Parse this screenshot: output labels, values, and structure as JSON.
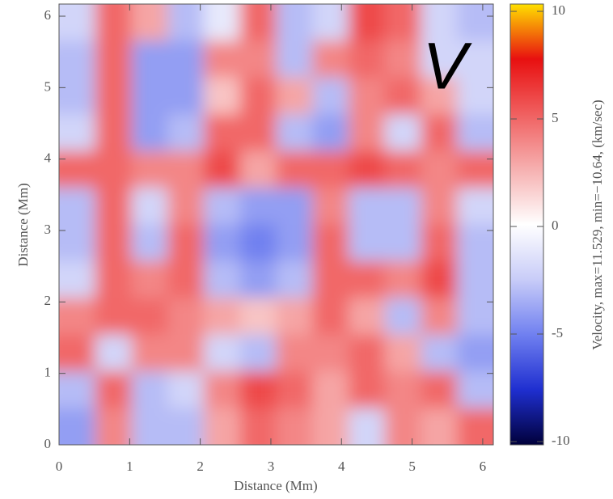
{
  "chart_data": {
    "type": "heatmap",
    "annotation": "V",
    "xlabel": "Distance (Mm)",
    "ylabel": "Distance (Mm)",
    "colorbar_label": "Velocity, max=11.529, min=−10.64, (km/sec)",
    "xlim": [
      0,
      6.15
    ],
    "ylim": [
      0,
      6.17
    ],
    "xticks": [
      0,
      1,
      2,
      3,
      4,
      5,
      6
    ],
    "yticks": [
      0,
      1,
      2,
      3,
      4,
      5,
      6
    ],
    "clim": [
      -10.15,
      10.34
    ],
    "cticks": [
      -10,
      -5,
      0,
      5,
      10
    ],
    "colormap": [
      "#00003a",
      "#1f2fd0",
      "#7080f0",
      "#c8ccf8",
      "#ffffff",
      "#f6b0b0",
      "#f06060",
      "#e81010",
      "#ffe000"
    ],
    "z": [
      [
        -2,
        5,
        3,
        -3,
        -1,
        5,
        -3,
        -2,
        6,
        5,
        -2,
        -3
      ],
      [
        -3,
        5,
        -4,
        -4,
        4,
        4,
        -3,
        4,
        5,
        4,
        -2,
        -2
      ],
      [
        -3,
        5,
        -4,
        -4,
        2,
        5,
        3,
        -3,
        4,
        5,
        3,
        -2
      ],
      [
        -2,
        5,
        -4,
        -3,
        5,
        5,
        -3,
        -4,
        4,
        -2,
        5,
        -3
      ],
      [
        5,
        5,
        4,
        4,
        6,
        3,
        5,
        5,
        6,
        5,
        4,
        5
      ],
      [
        -3,
        5,
        -2,
        4,
        -3,
        -4,
        -4,
        4,
        -3,
        -3,
        4,
        -2
      ],
      [
        -3,
        5,
        -3,
        5,
        -4,
        -5,
        -4,
        5,
        -3,
        -3,
        5,
        -3
      ],
      [
        -2,
        5,
        4,
        5,
        -3,
        -4,
        -3,
        5,
        5,
        4,
        6,
        -3
      ],
      [
        4,
        5,
        5,
        4,
        3,
        2,
        3,
        5,
        3,
        -3,
        4,
        -3
      ],
      [
        5,
        -2,
        4,
        4,
        -2,
        -3,
        4,
        4,
        5,
        3,
        -3,
        -4
      ],
      [
        -3,
        5,
        -3,
        -2,
        4,
        6,
        5,
        3,
        5,
        4,
        5,
        -3
      ],
      [
        -4,
        4,
        -3,
        -3,
        3,
        5,
        4,
        3,
        -2,
        4,
        3,
        5
      ]
    ]
  }
}
